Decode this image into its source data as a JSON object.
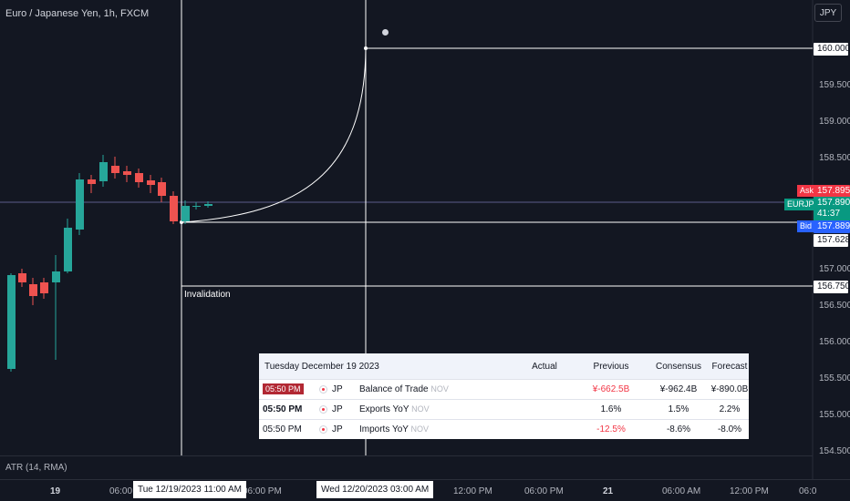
{
  "header": {
    "title": "Euro / Japanese Yen, 1h, FXCM",
    "currency_button": "JPY"
  },
  "indicator": {
    "label": "ATR (14, RMA)"
  },
  "drawing": {
    "invalidation_label": "Invalidation"
  },
  "price_axis": {
    "ticks": [
      "159.500",
      "159.000",
      "158.500",
      "157.000",
      "156.500",
      "156.000",
      "155.500",
      "155.000",
      "154.500"
    ],
    "target_label": "160.000",
    "entry_label": "157.628",
    "invalidation_label": "156.750",
    "ask": {
      "tag": "Ask",
      "price": "157.895"
    },
    "bid": {
      "tag": "Bid",
      "price": "157.889"
    },
    "symbol": {
      "tag": "EURJPY",
      "price": "157.890",
      "countdown": "41:37"
    }
  },
  "time_axis": {
    "ticks": [
      {
        "label": "19",
        "bold": true
      },
      {
        "label": "06:00 A",
        "bold": false
      },
      {
        "label": "06:00 PM",
        "bold": false
      },
      {
        "label": "12:00 PM",
        "bold": false
      },
      {
        "label": "06:00 PM",
        "bold": false
      },
      {
        "label": "21",
        "bold": true
      },
      {
        "label": "06:00 AM",
        "bold": false
      },
      {
        "label": "12:00 PM",
        "bold": false
      },
      {
        "label": "06:0",
        "bold": false
      }
    ],
    "highlight_left": "Tue 12/19/2023   11:00 AM",
    "highlight_right": "Wed 12/20/2023   03:00 AM"
  },
  "events": {
    "date": "Tuesday December 19 2023",
    "columns": {
      "actual": "Actual",
      "previous": "Previous",
      "consensus": "Consensus",
      "forecast": "Forecast"
    },
    "rows": [
      {
        "time": "05:50 PM",
        "country": "JP",
        "name": "Balance of Trade",
        "period": "NOV",
        "actual": "",
        "previous": "¥-662.5B",
        "consensus": "¥-962.4B",
        "forecast": "¥-890.0B"
      },
      {
        "time": "05:50 PM",
        "country": "JP",
        "name": "Exports YoY",
        "period": "NOV",
        "actual": "",
        "previous": "1.6%",
        "consensus": "1.5%",
        "forecast": "2.2%"
      },
      {
        "time": "05:50 PM",
        "country": "JP",
        "name": "Imports YoY",
        "period": "NOV",
        "actual": "",
        "previous": "-12.5%",
        "consensus": "-8.6%",
        "forecast": "-8.0%"
      }
    ]
  },
  "colors": {
    "background": "#131722",
    "up": "#26a69a",
    "down": "#ef5350",
    "ask": "#f23645",
    "bid": "#2962ff"
  }
}
